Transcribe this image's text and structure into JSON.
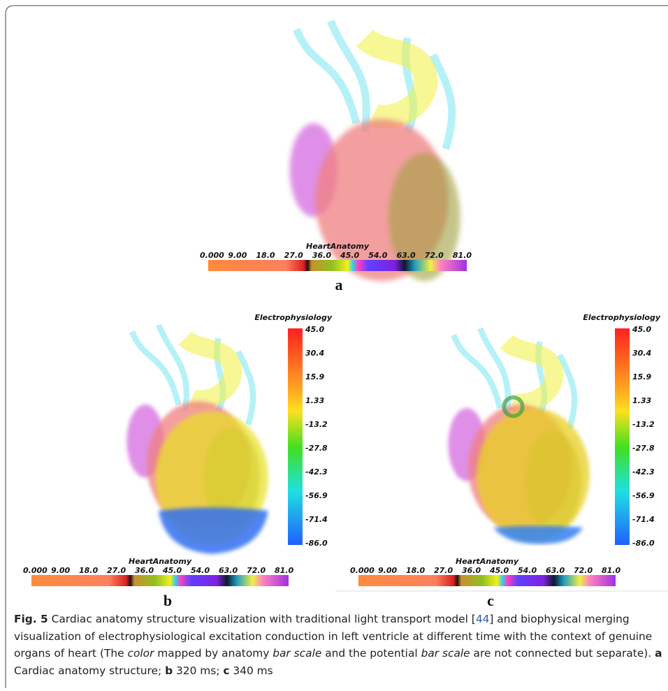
{
  "panels": [
    {
      "label": "a",
      "anatomy": {
        "title": "HeartAnatomy",
        "ticks": [
          "0.000",
          "9.00",
          "18.0",
          "27.0",
          "36.0",
          "45.0",
          "54.0",
          "63.0",
          "72.0",
          "81.0"
        ]
      }
    },
    {
      "label": "b",
      "anatomy": {
        "title": "HeartAnatomy",
        "ticks": [
          "0.000",
          "9.00",
          "18.0",
          "27.0",
          "36.0",
          "45.0",
          "54.0",
          "63.0",
          "72.0",
          "81.0"
        ]
      },
      "electro": {
        "title": "Electrophysiology",
        "ticks": [
          "45.0",
          "30.4",
          "15.9",
          "1.33",
          "-13.2",
          "-27.8",
          "-42.3",
          "-56.9",
          "-71.4",
          "-86.0"
        ]
      }
    },
    {
      "label": "c",
      "anatomy": {
        "title": "HeartAnatomy",
        "ticks": [
          "0.000",
          "9.00",
          "18.0",
          "27.0",
          "36.0",
          "45.0",
          "54.0",
          "63.0",
          "72.0",
          "81.0"
        ]
      },
      "electro": {
        "title": "Electrophysiology",
        "ticks": [
          "45.0",
          "30.4",
          "15.9",
          "1.33",
          "-13.2",
          "-27.8",
          "-42.3",
          "-56.9",
          "-71.4",
          "-86.0"
        ]
      }
    }
  ],
  "caption": {
    "segments": [
      "Fig. 5",
      "  Cardiac anatomy structure visualization with traditional light transport model [",
      "44",
      "] and biophysical merging visualization of electrophysiological excitation conduction in left ventricle at different time with the context of genuine organs of heart (The ",
      "color",
      " mapped by anatomy ",
      "bar scale",
      " and the potential ",
      "bar scale",
      " are not connected but separate). ",
      "a",
      " Cardiac anatomy structure; ",
      "b",
      " 320 ms; ",
      "c",
      " 340 ms"
    ]
  }
}
